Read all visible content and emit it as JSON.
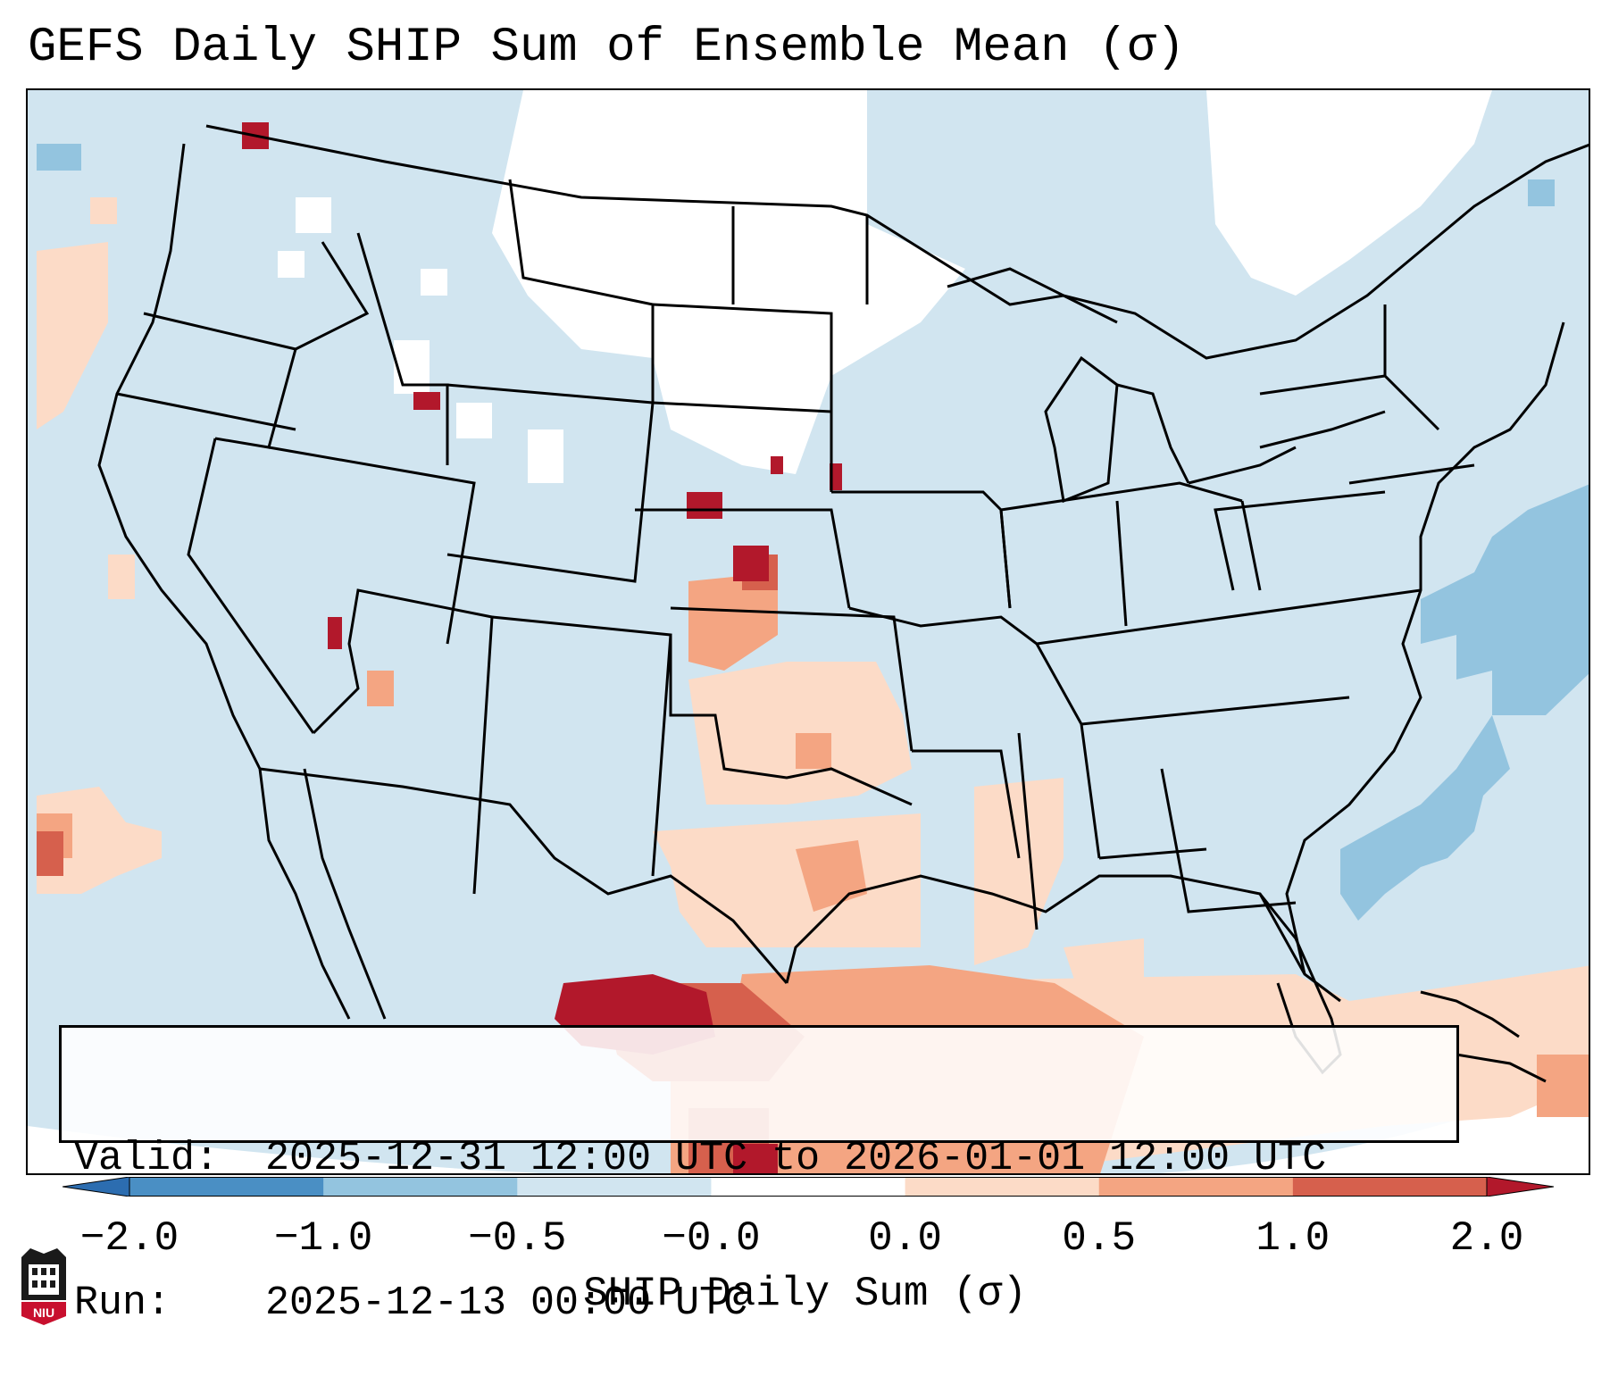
{
  "title": "GEFS Daily SHIP Sum of Ensemble Mean (σ)",
  "info": {
    "valid_label": "Valid:",
    "valid_value": "2025-12-31 12:00 UTC to 2026-01-01 12:00 UTC",
    "run_label": "Run:",
    "run_value": "2025-12-13 00:00 UTC"
  },
  "colorbar": {
    "label": "SHIP Daily Sum (σ)",
    "ticks": [
      "−2.0",
      "−1.0",
      "−0.5",
      "−0.0",
      "0.0",
      "0.5",
      "1.0",
      "2.0"
    ],
    "bins": [
      {
        "range": "< -2.0",
        "color": "#2c6db0"
      },
      {
        "range": "-2.0 to -1.0",
        "color": "#4a8fc4"
      },
      {
        "range": "-1.0 to -0.5",
        "color": "#93c4df"
      },
      {
        "range": "-0.5 to -0.0",
        "color": "#d1e5f0"
      },
      {
        "range": "-0.0 to 0.0",
        "color": "#ffffff"
      },
      {
        "range": "0.0 to 0.5",
        "color": "#fcdbc7"
      },
      {
        "range": "0.5 to 1.0",
        "color": "#f4a582"
      },
      {
        "range": "1.0 to 2.0",
        "color": "#d6604d"
      },
      {
        "range": "> 2.0",
        "color": "#b2182b"
      }
    ]
  },
  "logo": {
    "text": "NIU"
  }
}
